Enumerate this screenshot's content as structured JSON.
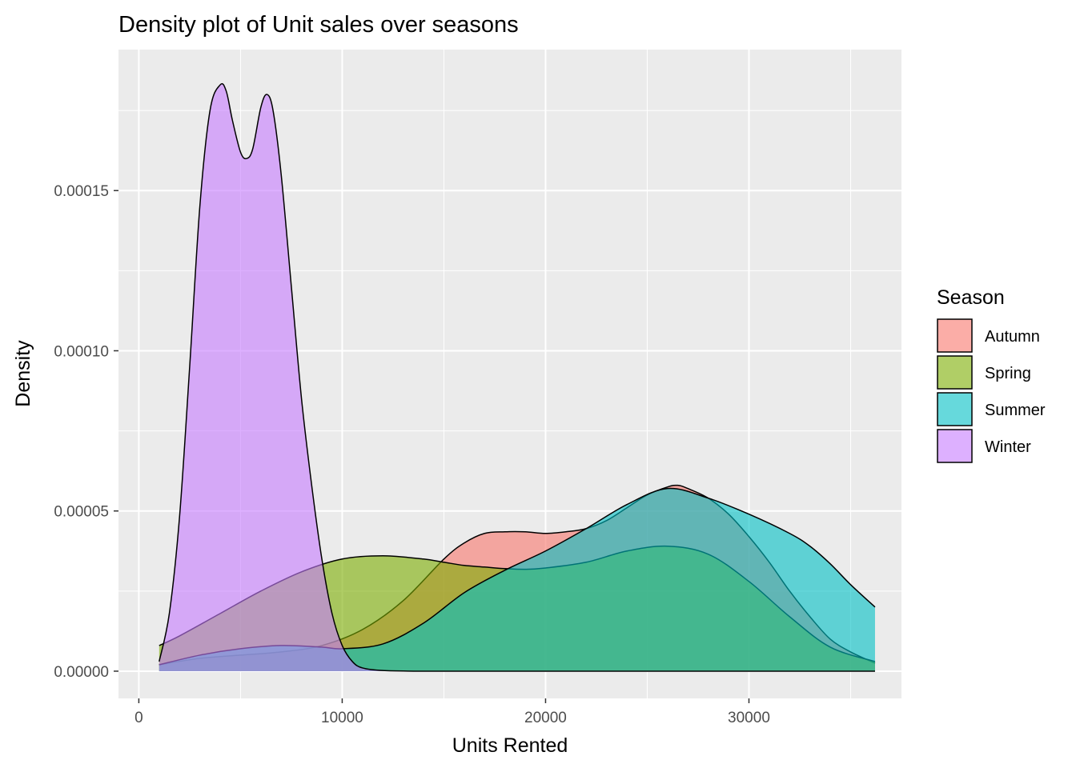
{
  "chart_data": {
    "type": "area",
    "title": "Density plot of Unit sales over seasons",
    "xlabel": "Units Rented",
    "ylabel": "Density",
    "xlim": [
      -1000,
      37500
    ],
    "ylim": [
      -8.5e-06,
      0.000194
    ],
    "x_ticks": [
      0,
      10000,
      20000,
      30000
    ],
    "x_tick_labels": [
      "0",
      "10000",
      "20000",
      "30000"
    ],
    "y_ticks": [
      0,
      5e-05,
      0.0001,
      0.00015
    ],
    "y_tick_labels": [
      "0.00000",
      "0.00005",
      "0.00010",
      "0.00015"
    ],
    "grid": true,
    "legend": {
      "title": "Season",
      "position": "right",
      "entries": [
        "Autumn",
        "Spring",
        "Summer",
        "Winter"
      ]
    },
    "series": [
      {
        "name": "Autumn",
        "color": "#F8766D",
        "x": [
          1000,
          3000,
          5000,
          7000,
          9000,
          11000,
          13000,
          15000,
          16000,
          17000,
          18000,
          19000,
          20000,
          21000,
          22000,
          23000,
          24000,
          25000,
          26000,
          26500,
          27000,
          28000,
          29000,
          30000,
          31000,
          32000,
          33000,
          34000,
          35000,
          36200
        ],
        "y": [
          2e-06,
          4e-06,
          5e-06,
          6e-06,
          8e-06,
          1.3e-05,
          2.2e-05,
          3.5e-05,
          4e-05,
          4.3e-05,
          4.35e-05,
          4.35e-05,
          4.3e-05,
          4.35e-05,
          4.45e-05,
          4.7e-05,
          5.1e-05,
          5.5e-05,
          5.75e-05,
          5.8e-05,
          5.7e-05,
          5.4e-05,
          4.9e-05,
          4.2e-05,
          3.4e-05,
          2.5e-05,
          1.7e-05,
          1e-05,
          6e-06,
          2.5e-06
        ]
      },
      {
        "name": "Spring",
        "color": "#7CAE00",
        "x": [
          1000,
          2000,
          4000,
          6000,
          8000,
          10000,
          12000,
          14000,
          15000,
          16000,
          17000,
          18000,
          19000,
          20000,
          22000,
          24000,
          26000,
          28000,
          30000,
          32000,
          34000,
          36200
        ],
        "y": [
          8e-06,
          1.1e-05,
          1.8e-05,
          2.5e-05,
          3.1e-05,
          3.5e-05,
          3.6e-05,
          3.5e-05,
          3.4e-05,
          3.3e-05,
          3.25e-05,
          3.2e-05,
          3.18e-05,
          3.22e-05,
          3.4e-05,
          3.75e-05,
          3.9e-05,
          3.65e-05,
          2.8e-05,
          1.7e-05,
          7.5e-06,
          3e-06
        ]
      },
      {
        "name": "Summer",
        "color": "#00BFC4",
        "x": [
          1000,
          3000,
          5000,
          7000,
          9000,
          10000,
          12000,
          14000,
          16000,
          18000,
          20000,
          22000,
          24000,
          26000,
          28000,
          30000,
          32000,
          33000,
          34000,
          35000,
          36200
        ],
        "y": [
          2e-06,
          5e-06,
          7e-06,
          8e-06,
          7.5e-06,
          7e-06,
          8.5e-06,
          1.5e-05,
          2.45e-05,
          3.15e-05,
          3.75e-05,
          4.45e-05,
          5.2e-05,
          5.7e-05,
          5.4e-05,
          4.9e-05,
          4.3e-05,
          3.9e-05,
          3.35e-05,
          2.7e-05,
          2e-05
        ]
      },
      {
        "name": "Winter",
        "color": "#C77CFF",
        "x": [
          1000,
          1500,
          2000,
          2500,
          3000,
          3500,
          4000,
          4300,
          4600,
          5000,
          5300,
          5600,
          6000,
          6300,
          6600,
          7000,
          7500,
          8000,
          8500,
          9000,
          9500,
          10000,
          10500,
          11000,
          12000,
          14000,
          20000,
          36200
        ],
        "y": [
          3e-06,
          1.8e-05,
          4.8e-05,
          9.5e-05,
          0.000145,
          0.000175,
          0.000183,
          0.000181,
          0.000172,
          0.000162,
          0.00016,
          0.000163,
          0.000176,
          0.00018,
          0.000175,
          0.000155,
          0.00012,
          8.5e-05,
          5.8e-05,
          3.5e-05,
          1.8e-05,
          8e-06,
          3e-06,
          1e-06,
          2e-07,
          0,
          0,
          0
        ]
      }
    ]
  }
}
